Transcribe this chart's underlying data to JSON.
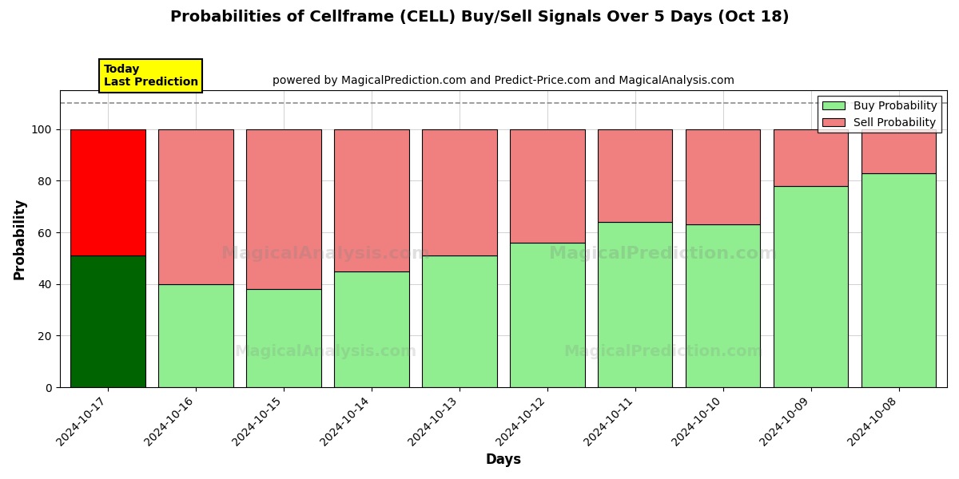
{
  "title": "Probabilities of Cellframe (CELL) Buy/Sell Signals Over 5 Days (Oct 18)",
  "subtitle": "powered by MagicalPrediction.com and Predict-Price.com and MagicalAnalysis.com",
  "xlabel": "Days",
  "ylabel": "Probability",
  "dates": [
    "2024-10-17",
    "2024-10-16",
    "2024-10-15",
    "2024-10-14",
    "2024-10-13",
    "2024-10-12",
    "2024-10-11",
    "2024-10-10",
    "2024-10-09",
    "2024-10-08"
  ],
  "buy_values": [
    51,
    40,
    38,
    45,
    51,
    56,
    64,
    63,
    78,
    83
  ],
  "sell_values": [
    49,
    60,
    62,
    55,
    49,
    44,
    36,
    37,
    22,
    17
  ],
  "today_buy_color": "#006400",
  "today_sell_color": "#FF0000",
  "buy_color": "#90EE90",
  "sell_color": "#F08080",
  "today_label_bg": "#FFFF00",
  "today_label_text": "Today\nLast Prediction",
  "ylim": [
    0,
    115
  ],
  "yticks": [
    0,
    20,
    40,
    60,
    80,
    100
  ],
  "dashed_line_y": 110,
  "legend_buy_label": "Buy Probability",
  "legend_sell_label": "Sell Probability",
  "background_color": "#ffffff",
  "grid_color": "#808080",
  "bar_edge_color": "#000000",
  "bar_width": 0.85,
  "figsize": [
    12,
    6
  ],
  "dpi": 100,
  "title_fontsize": 14,
  "subtitle_fontsize": 10,
  "axis_label_fontsize": 12,
  "tick_fontsize": 10,
  "legend_fontsize": 10
}
